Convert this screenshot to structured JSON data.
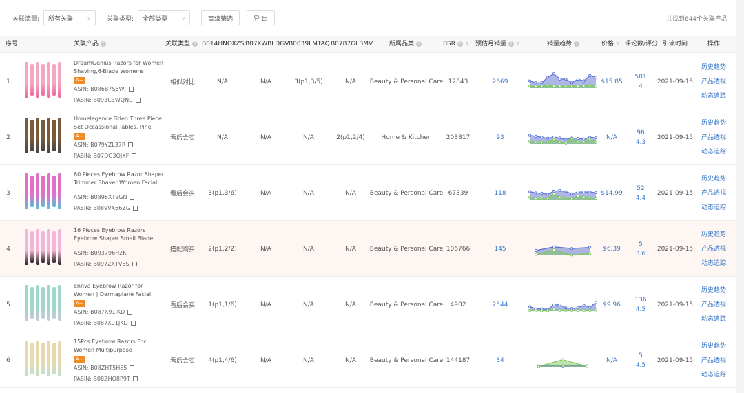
{
  "filters": {
    "flow_label": "关联流量:",
    "flow_value": "所有关联",
    "type_label": "关联类型:",
    "type_value": "全部类型",
    "advanced": "高级筛选",
    "export": "导 出",
    "result_count": "共找到644个关联产品"
  },
  "columns": {
    "index": "序号",
    "product": "关联产品",
    "relation": "关联类型",
    "asin1": "B014HNOXZS",
    "asin2": "B07KWBLDGV",
    "asin3": "B0039LMTAQ",
    "asin4": "B0787GLBMV",
    "category": "所属品类",
    "bsr": "BSR",
    "monthly": "预估月销量",
    "trend": "销量趋势",
    "price": "价格",
    "reviews": "评论数/评分",
    "time": "引流时间",
    "ops": "操作"
  },
  "actions": {
    "history": "历史趋势",
    "insight": "产品透视",
    "track": "动态追踪"
  },
  "colors": {
    "link": "#3a78c9",
    "aplus": "#f08a24",
    "trend_blue": "#5b6fd0",
    "trend_green": "#7cc85a",
    "highlight_row": "#fdf6f3"
  },
  "rows": [
    {
      "index": "1",
      "title": "DreamGenius Razors for Women Shaving,6-Blade Womens Razors...",
      "aplus": "A+",
      "asin": "ASIN: B086B7S6WJ",
      "pasin": "PASIN: B093C3WQNC",
      "relation": "相似对比",
      "a1": "N/A",
      "a2": "N/A",
      "a3": "3(p1,3/5)",
      "a4": "N/A",
      "category": "Beauty & Personal Care",
      "bsr": "12843",
      "monthly": "2669",
      "price": "$15.85",
      "reviews": "501",
      "rating": "4",
      "time": "2021-09-15",
      "img": [
        "#f4a7c0",
        "#e96a9a"
      ],
      "trend_a": [
        4,
        3,
        3,
        6,
        8,
        5,
        5,
        3,
        5,
        4,
        7,
        6
      ],
      "trend_b": [
        1,
        1,
        1,
        1.5,
        1,
        1,
        1,
        1,
        1,
        1,
        1.5,
        1
      ]
    },
    {
      "index": "2",
      "title": "Homelegance Fideo Three Piece Set Occassional Tables, Pine",
      "aplus": "A+",
      "asin": "ASIN: B079YZL37R",
      "pasin": "PASIN: B07DG3QJXF",
      "relation": "看后会买",
      "a1": "N/A",
      "a2": "N/A",
      "a3": "N/A",
      "a4": "2(p1,2/4)",
      "category": "Home & Kitchen",
      "bsr": "203817",
      "monthly": "93",
      "price": "N/A",
      "reviews": "96",
      "rating": "4.3",
      "time": "2021-09-15",
      "img": [
        "#7a5a3c",
        "#444"
      ],
      "trend_a": [
        4.7,
        4.3,
        3.7,
        3.2,
        3.8,
        3.3,
        2.5,
        3.3,
        3,
        2.8,
        3.7,
        3.4
      ],
      "trend_b": [
        1.2,
        1,
        0.9,
        0.9,
        2.2,
        0.9,
        0.4,
        3,
        1,
        1,
        2.5,
        0.9
      ]
    },
    {
      "index": "3",
      "title": "60 Pieces Eyebrow Razor Shaper Trimmer Shaver Women Facial...",
      "aplus": "",
      "asin": "ASIN: B0896XT9GN",
      "pasin": "PASIN: B089VX66ZG",
      "relation": "看后会买",
      "a1": "3(p1,3/6)",
      "a2": "N/A",
      "a3": "N/A",
      "a4": "N/A",
      "category": "Beauty & Personal Care",
      "bsr": "67339",
      "monthly": "118",
      "price": "$14.99",
      "reviews": "52",
      "rating": "4.4",
      "time": "2021-09-15",
      "img": [
        "#e070c8",
        "#5bc0d8"
      ],
      "trend_a": [
        4.4,
        3.7,
        3.5,
        2.9,
        4.7,
        5,
        4.4,
        3.2,
        4.2,
        4.2,
        4.2,
        3.8
      ],
      "trend_b": [
        1.2,
        0.7,
        1,
        0.7,
        3.2,
        1.2,
        1,
        0.5,
        2,
        1.2,
        1,
        0.8
      ]
    },
    {
      "index": "4",
      "title": "16 Pieces Eyebrow Razors Eyebrow Shaper Small Blade Size Facial...",
      "aplus": "",
      "asin": "ASIN: B093796H2K",
      "pasin": "PASIN: B097ZXTV5S",
      "relation": "搭配购买",
      "a1": "2(p1,2/2)",
      "a2": "N/A",
      "a3": "N/A",
      "a4": "N/A",
      "category": "Beauty & Personal Care",
      "bsr": "106766",
      "monthly": "145",
      "price": "$6.39",
      "reviews": "5",
      "rating": "3.6",
      "time": "2021-09-15",
      "img": [
        "#f2b6d8",
        "#222"
      ],
      "trend_a": [
        2.7,
        4.7,
        3.8,
        4.4
      ],
      "trend_b": [
        0.6,
        3,
        0.2,
        1
      ]
    },
    {
      "index": "5",
      "title": "ennva Eyebrow Razor for Women | Dermaplane Facial Razor for Wom...",
      "aplus": "A+",
      "asin": "ASIN: B087X91JKD",
      "pasin": "PASIN: B087X91JKD",
      "relation": "看后会买",
      "a1": "1(p1,1/6)",
      "a2": "N/A",
      "a3": "N/A",
      "a4": "N/A",
      "category": "Beauty & Personal Care",
      "bsr": "4902",
      "monthly": "2544",
      "price": "$9.96",
      "reviews": "136",
      "rating": "4.5",
      "time": "2021-09-15",
      "img": [
        "#9fd8c8",
        "#c8c8d8"
      ],
      "trend_a": [
        2.5,
        1.3,
        1.3,
        1,
        3.5,
        3.5,
        1.8,
        1.5,
        2,
        3.2,
        2.2,
        4.8
      ],
      "trend_b": [
        0.4,
        0.2,
        0.2,
        0.2,
        1,
        0.4,
        0.4,
        0.4,
        0.4,
        0.4,
        0.4,
        0.6
      ]
    },
    {
      "index": "6",
      "title": "15Pcs Eyebrow Razors For Women Multipurpose Exfoliating...",
      "aplus": "A+",
      "asin": "ASIN: B08ZHT5H85",
      "pasin": "PASIN: B08ZHQ8P9T",
      "relation": "看后会买",
      "a1": "4(p1,4/6)",
      "a2": "N/A",
      "a3": "N/A",
      "a4": "N/A",
      "category": "Beauty & Personal Care",
      "bsr": "144187",
      "monthly": "34",
      "price": "N/A",
      "reviews": "5",
      "rating": "4.5",
      "time": "2021-09-15",
      "img": [
        "#e8d8b0",
        "#c0e0c8"
      ],
      "trend_a": [
        0.5,
        0.5,
        0.5
      ],
      "trend_b": [
        0.2,
        4,
        0.2
      ]
    }
  ]
}
